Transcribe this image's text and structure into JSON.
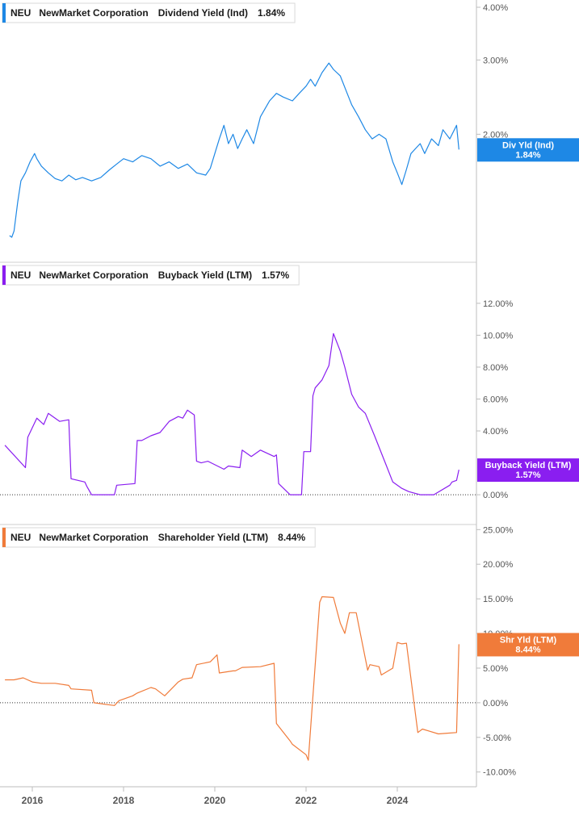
{
  "chart_data": [
    {
      "type": "line",
      "ticker": "NEU",
      "company": "NewMarket Corporation",
      "metric": "Dividend Yield (Ind)",
      "latest_value_label": "1.84%",
      "tag_label": "Div Yld (Ind)",
      "color": "#1e88e5",
      "y_scale": "log",
      "ylim": [
        1.12,
        4.0
      ],
      "y_ticks": [
        4.0,
        3.0,
        2.0
      ],
      "y_tick_labels": [
        "4.00%",
        "3.00%",
        "2.00%"
      ],
      "zero_line": false,
      "series": [
        {
          "x": [
            2015.5,
            2015.55,
            2015.6,
            2015.68,
            2015.75,
            2015.85,
            2015.95,
            2016.05,
            2016.1,
            2016.2,
            2016.35,
            2016.5,
            2016.65,
            2016.8,
            2016.95,
            2017.1,
            2017.3,
            2017.5,
            2017.7,
            2017.85,
            2018.0,
            2018.2,
            2018.4,
            2018.6,
            2018.8,
            2019.0,
            2019.2,
            2019.4,
            2019.6,
            2019.8,
            2019.9,
            2020.0,
            2020.1,
            2020.2,
            2020.3,
            2020.4,
            2020.5,
            2020.6,
            2020.7,
            2020.85,
            2021.0,
            2021.2,
            2021.35,
            2021.5,
            2021.7,
            2021.85,
            2022.0,
            2022.1,
            2022.2,
            2022.35,
            2022.5,
            2022.6,
            2022.75,
            2022.9,
            2023.0,
            2023.15,
            2023.3,
            2023.45,
            2023.6,
            2023.75,
            2023.9,
            2024.0,
            2024.1,
            2024.2,
            2024.3,
            2024.4,
            2024.5,
            2024.6,
            2024.75,
            2024.9,
            2025.0,
            2025.15,
            2025.3,
            2025.35
          ],
          "values": [
            1.15,
            1.14,
            1.18,
            1.38,
            1.55,
            1.62,
            1.72,
            1.8,
            1.75,
            1.68,
            1.62,
            1.57,
            1.55,
            1.6,
            1.56,
            1.58,
            1.55,
            1.58,
            1.65,
            1.7,
            1.75,
            1.72,
            1.78,
            1.75,
            1.68,
            1.72,
            1.66,
            1.7,
            1.62,
            1.6,
            1.66,
            1.8,
            1.95,
            2.1,
            1.9,
            2.0,
            1.85,
            1.95,
            2.05,
            1.9,
            2.2,
            2.4,
            2.5,
            2.45,
            2.4,
            2.5,
            2.6,
            2.7,
            2.6,
            2.8,
            2.95,
            2.85,
            2.75,
            2.5,
            2.35,
            2.2,
            2.05,
            1.95,
            2.0,
            1.95,
            1.72,
            1.62,
            1.52,
            1.65,
            1.8,
            1.85,
            1.9,
            1.8,
            1.95,
            1.88,
            2.05,
            1.95,
            2.1,
            1.84
          ]
        }
      ]
    },
    {
      "type": "line",
      "ticker": "NEU",
      "company": "NewMarket Corporation",
      "metric": "Buyback Yield (LTM)",
      "latest_value_label": "1.57%",
      "tag_label": "Buyback Yield (LTM)",
      "color": "#8a1ef0",
      "y_scale": "linear",
      "ylim": [
        -0.5,
        12.5
      ],
      "y_ticks": [
        12,
        10,
        8,
        6,
        4,
        0
      ],
      "y_tick_labels": [
        "12.00%",
        "10.00%",
        "8.00%",
        "6.00%",
        "4.00%",
        "0.00%"
      ],
      "zero_line": true,
      "series": [
        {
          "x": [
            2015.4,
            2015.85,
            2015.9,
            2016.1,
            2016.25,
            2016.35,
            2016.6,
            2016.8,
            2016.85,
            2017.15,
            2017.2,
            2017.3,
            2017.8,
            2017.85,
            2018.25,
            2018.3,
            2018.4,
            2018.6,
            2018.8,
            2019.0,
            2019.2,
            2019.3,
            2019.4,
            2019.55,
            2019.6,
            2019.7,
            2019.85,
            2020.2,
            2020.3,
            2020.55,
            2020.6,
            2020.8,
            2021.0,
            2021.3,
            2021.35,
            2021.4,
            2021.65,
            2021.9,
            2021.95,
            2022.1,
            2022.15,
            2022.2,
            2022.35,
            2022.5,
            2022.6,
            2022.75,
            2022.85,
            2023.0,
            2023.15,
            2023.3,
            2023.5,
            2023.75,
            2023.9,
            2024.1,
            2024.25,
            2024.5,
            2024.8,
            2025.15,
            2025.2,
            2025.3,
            2025.35
          ],
          "values": [
            3.1,
            1.7,
            3.6,
            4.8,
            4.4,
            5.1,
            4.6,
            4.7,
            1.0,
            0.8,
            0.5,
            0.0,
            0.0,
            0.6,
            0.7,
            3.4,
            3.4,
            3.7,
            3.9,
            4.6,
            4.9,
            4.8,
            5.3,
            5.0,
            2.1,
            2.0,
            2.1,
            1.6,
            1.8,
            1.7,
            2.8,
            2.4,
            2.8,
            2.4,
            2.5,
            0.7,
            0.0,
            0.0,
            2.7,
            2.7,
            6.2,
            6.7,
            7.2,
            8.1,
            10.1,
            9.0,
            8.0,
            6.3,
            5.5,
            5.1,
            3.7,
            1.9,
            0.8,
            0.4,
            0.2,
            0.0,
            0.0,
            0.6,
            0.8,
            0.9,
            1.57
          ]
        }
      ]
    },
    {
      "type": "line",
      "ticker": "NEU",
      "company": "NewMarket Corporation",
      "metric": "Shareholder Yield (LTM)",
      "latest_value_label": "8.44%",
      "tag_label": "Shr Yld (LTM)",
      "color": "#f07b3a",
      "y_scale": "linear",
      "ylim": [
        -10.5,
        25.5
      ],
      "y_ticks": [
        25,
        20,
        15,
        10,
        5,
        0,
        -5,
        -10
      ],
      "y_tick_labels": [
        "25.00%",
        "20.00%",
        "15.00%",
        "10.00%",
        "5.00%",
        "0.00%",
        "-5.00%",
        "-10.00%"
      ],
      "zero_line": true,
      "series": [
        {
          "x": [
            2015.4,
            2015.6,
            2015.8,
            2016.0,
            2016.2,
            2016.5,
            2016.8,
            2016.85,
            2017.3,
            2017.35,
            2017.8,
            2017.9,
            2018.2,
            2018.3,
            2018.6,
            2018.7,
            2018.9,
            2019.2,
            2019.3,
            2019.5,
            2019.6,
            2019.9,
            2020.05,
            2020.1,
            2020.4,
            2020.45,
            2020.6,
            2021.0,
            2021.3,
            2021.35,
            2021.65,
            2021.7,
            2022.0,
            2022.05,
            2022.3,
            2022.35,
            2022.6,
            2022.75,
            2022.85,
            2022.95,
            2023.1,
            2023.35,
            2023.4,
            2023.6,
            2023.65,
            2023.9,
            2024.0,
            2024.1,
            2024.2,
            2024.45,
            2024.55,
            2024.7,
            2024.9,
            2025.1,
            2025.3,
            2025.35
          ],
          "values": [
            3.3,
            3.3,
            3.6,
            3.0,
            2.8,
            2.8,
            2.5,
            2.0,
            1.8,
            0.0,
            -0.4,
            0.3,
            1.0,
            1.4,
            2.2,
            2.0,
            1.0,
            3.0,
            3.4,
            3.6,
            5.5,
            5.9,
            6.9,
            4.3,
            4.6,
            4.6,
            5.1,
            5.2,
            5.7,
            -3.0,
            -5.5,
            -6.0,
            -7.5,
            -8.3,
            14.5,
            15.3,
            15.2,
            11.5,
            10.0,
            13.0,
            13.0,
            4.7,
            5.5,
            5.2,
            4.0,
            5.0,
            8.7,
            8.5,
            8.6,
            -4.3,
            -3.8,
            -4.1,
            -4.5,
            -4.4,
            -4.3,
            8.44
          ]
        }
      ]
    }
  ],
  "x_axis": {
    "ticks": [
      2016,
      2018,
      2020,
      2022,
      2024
    ],
    "tick_labels": [
      "2016",
      "2018",
      "2020",
      "2022",
      "2024"
    ],
    "xlim": [
      2015.35,
      2025.75
    ]
  }
}
